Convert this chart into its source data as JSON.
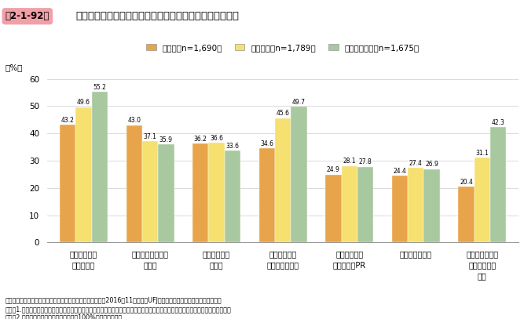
{
  "title": "持続成長型企業の、成長段階ごとの販路開拓における課題",
  "figure_label": "第2-1-92図",
  "categories": [
    "新規顧客への\nアプローチ",
    "市場・顧客ニーズ\nの把握",
    "自社の強みの\n見極め",
    "既存顧客との\nつながりの強化",
    "製品・商品・\nサービスのPR",
    "競争環境の把握",
    "販路開拓を行う\nための人材の\n確保"
  ],
  "series": [
    {
      "label": "創業期（n=1,690）",
      "color": "#E8A44A",
      "values": [
        43.2,
        43.0,
        36.2,
        34.6,
        24.9,
        24.4,
        20.4
      ]
    },
    {
      "label": "成長初期（n=1,789）",
      "color": "#F5E070",
      "values": [
        49.6,
        37.1,
        36.6,
        45.6,
        28.1,
        27.4,
        31.1
      ]
    },
    {
      "label": "安定・拡大期（n=1,675）",
      "color": "#A8C8A0",
      "values": [
        55.2,
        35.9,
        33.6,
        49.7,
        27.8,
        26.9,
        42.3
      ]
    }
  ],
  "ylabel": "（%）",
  "ylim": [
    0,
    62
  ],
  "yticks": [
    0,
    10,
    20,
    30,
    40,
    50,
    60
  ],
  "footnote1": "資料：中小企業庁委託「起業・創業の実態に関する調査」（2016年11月、三菱UFJリサーチ＆コンサルティング（株））",
  "footnote2": "（注）1.持続成長型の企業が各成長段階で、販路開拓において課題となった、課題となっていることについての回答を集計している。",
  "footnote3": "　　　2.複数回答のため、合計は必ずしも100%にはならない。",
  "title_box_color": "#F2A0A8",
  "background_color": "#FFFFFF"
}
